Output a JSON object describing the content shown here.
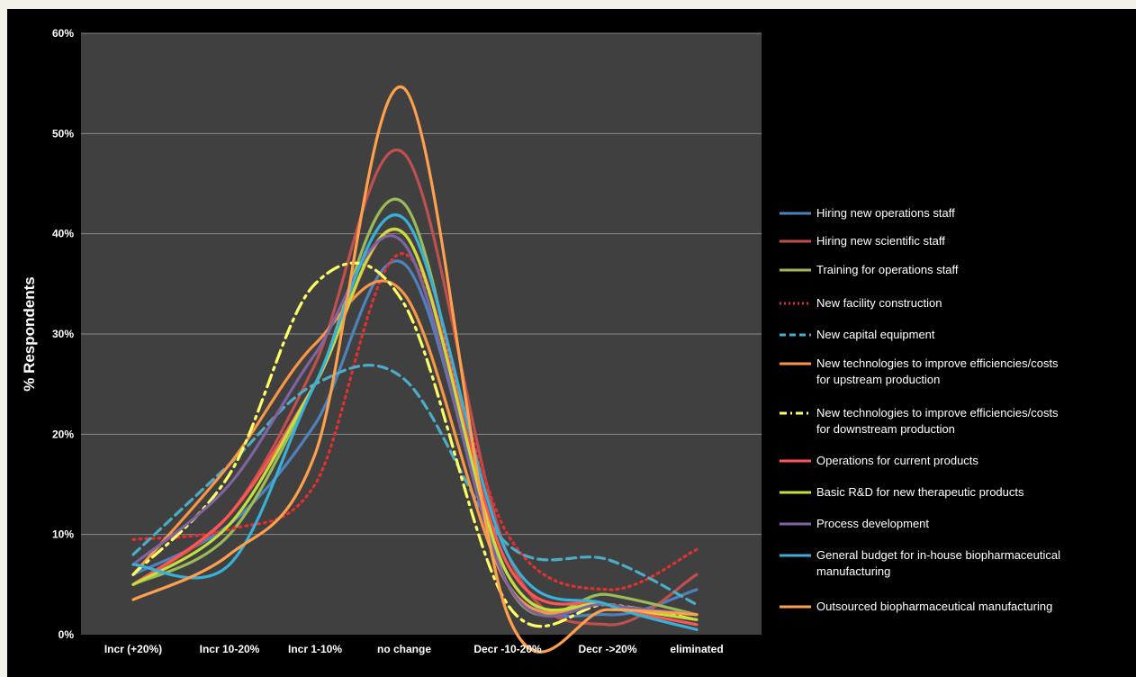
{
  "chart_data": {
    "type": "line",
    "title": "",
    "xlabel": "",
    "ylabel": "% Respondents",
    "ylim": [
      0,
      60
    ],
    "yticks": [
      "0%",
      "10%",
      "20%",
      "30%",
      "40%",
      "50%",
      "60%"
    ],
    "categories": [
      "Incr (+20%)",
      "Incr 10-20%",
      "Incr 1-10%",
      "no change",
      "Decr -10-20%",
      "Decr ->20%",
      "eliminated"
    ],
    "grid": true,
    "plot_background": "#404040",
    "legend_position": "right",
    "series": [
      {
        "name": "Hiring new operations staff",
        "color": "#4f81bd",
        "dash": "solid",
        "values": [
          6,
          11,
          21,
          37,
          6,
          2,
          4.5
        ]
      },
      {
        "name": "Hiring new scientific staff",
        "color": "#c0504d",
        "dash": "solid",
        "values": [
          5,
          12,
          27,
          48,
          8,
          1,
          6
        ]
      },
      {
        "name": "Training for operations staff",
        "color": "#9bbb59",
        "dash": "solid",
        "values": [
          5,
          10,
          25,
          43,
          5,
          4,
          2
        ]
      },
      {
        "name": "New facility construction",
        "color": "#e03030",
        "dash": "dot",
        "values": [
          9.5,
          10.5,
          15,
          38,
          10,
          4.5,
          8.5
        ]
      },
      {
        "name": "New capital equipment",
        "color": "#4bacc6",
        "dash": "dash",
        "values": [
          8,
          17,
          25,
          25.5,
          9,
          7.5,
          3
        ]
      },
      {
        "name": "New technologies to improve efficiencies/costs for upstream production",
        "color": "#f79646",
        "dash": "solid",
        "values": [
          6,
          17,
          29,
          34,
          5,
          3,
          2
        ]
      },
      {
        "name": "New technologies to improve efficiencies/costs for downstream production",
        "color": "#ffff66",
        "dash": "dashdot",
        "values": [
          6,
          16,
          35,
          33,
          3,
          3,
          1.5
        ]
      },
      {
        "name": "Operations for current products",
        "color": "#ff5555",
        "dash": "solid",
        "values": [
          5,
          12,
          25,
          40,
          7,
          3,
          1
        ]
      },
      {
        "name": "Basic R&D for new therapeutic products",
        "color": "#c4e03c",
        "dash": "solid",
        "values": [
          5,
          11,
          25,
          40,
          6,
          3,
          1.5
        ]
      },
      {
        "name": "Process development",
        "color": "#8064a2",
        "dash": "solid",
        "values": [
          7,
          15,
          28,
          39,
          5,
          3,
          2
        ]
      },
      {
        "name": "General budget for in-house biopharmaceutical manufacturing",
        "color": "#39b0d8",
        "dash": "solid",
        "values": [
          7,
          7,
          25,
          41.5,
          8,
          3,
          0.5
        ]
      },
      {
        "name": "Outsourced biopharmaceutical manufacturing",
        "color": "#ffa04d",
        "dash": "solid",
        "values": [
          3.5,
          8,
          18,
          54.5,
          2,
          2.5,
          2
        ]
      }
    ]
  },
  "legend": [
    {
      "lines": [
        "Hiring new operations staff"
      ]
    },
    {
      "lines": [
        "Hiring new scientific staff"
      ]
    },
    {
      "lines": [
        "Training for operations staff"
      ]
    },
    {
      "lines": [
        "New facility construction"
      ]
    },
    {
      "lines": [
        "New capital equipment"
      ]
    },
    {
      "lines": [
        "New technologies to improve efficiencies/costs",
        "for upstream production"
      ]
    },
    {
      "lines": [
        "New technologies to improve efficiencies/costs",
        "for downstream production"
      ]
    },
    {
      "lines": [
        "Operations for current products"
      ]
    },
    {
      "lines": [
        "Basic R&D for new therapeutic products"
      ]
    },
    {
      "lines": [
        "Process development"
      ]
    },
    {
      "lines": [
        "General budget for in-house biopharmaceutical",
        "manufacturing"
      ]
    },
    {
      "lines": [
        "Outsourced biopharmaceutical manufacturing"
      ]
    }
  ]
}
